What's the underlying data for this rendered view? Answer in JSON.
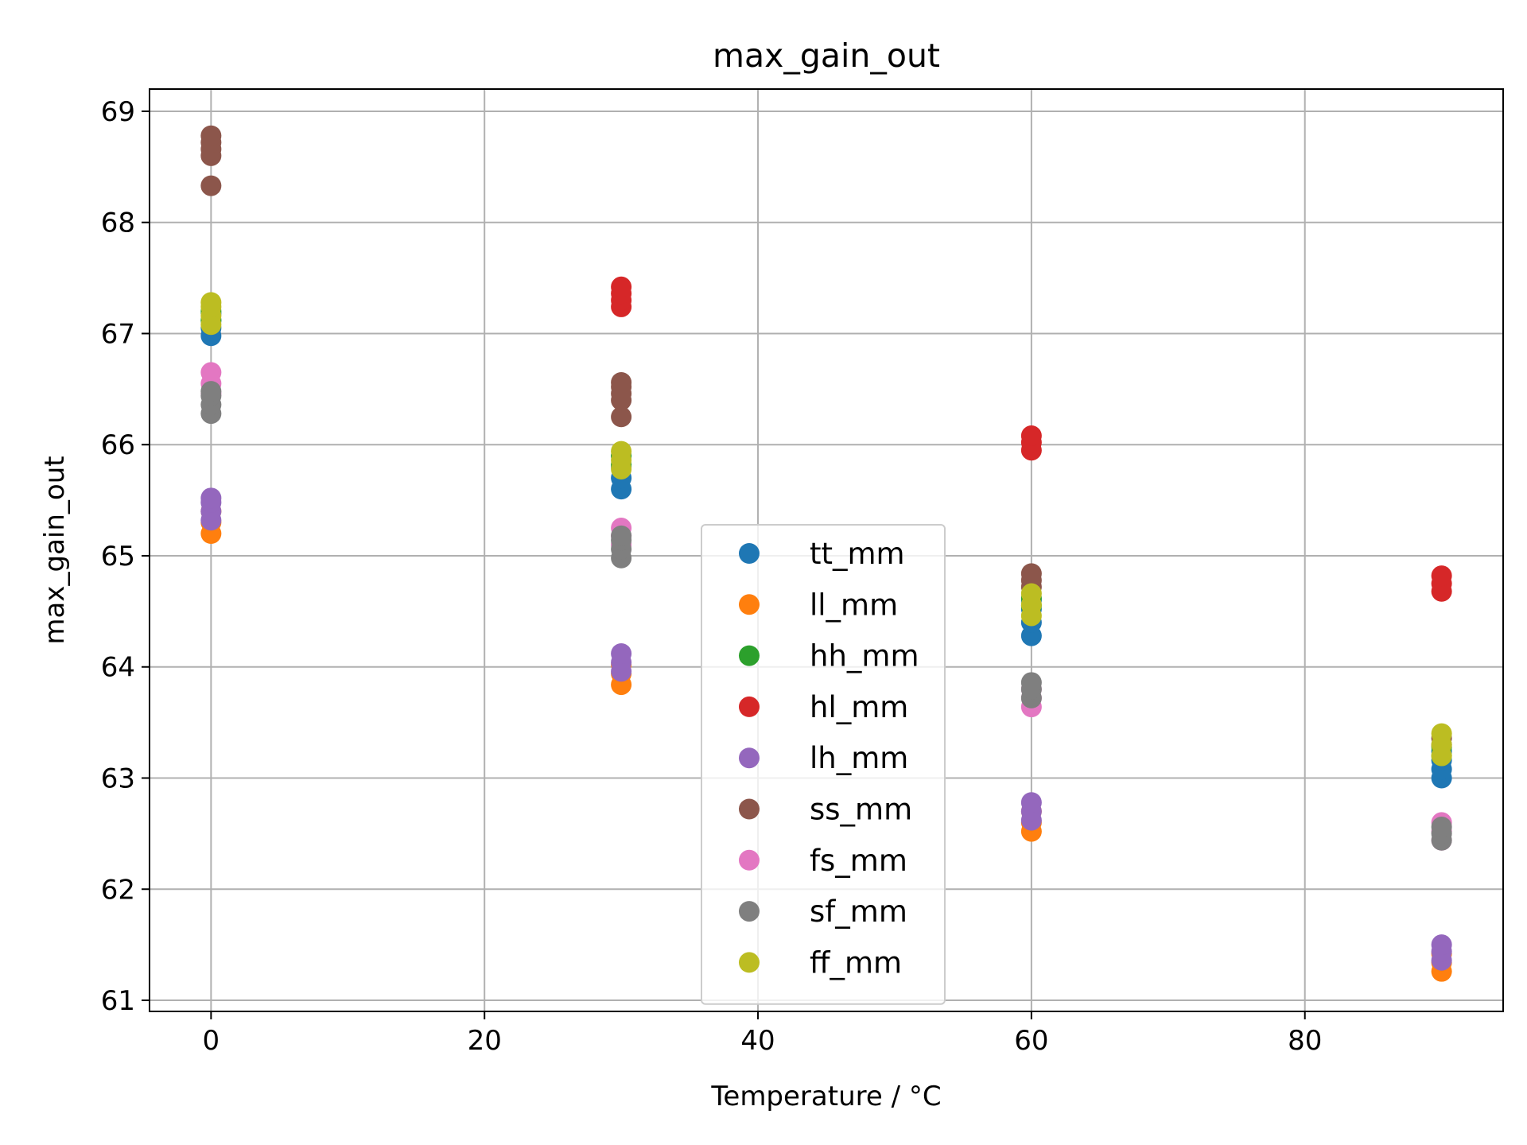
{
  "chart_data": {
    "type": "scatter",
    "title": "max_gain_out",
    "xlabel": "Temperature / °C",
    "ylabel": "max_gain_out",
    "xlim": [
      -4.5,
      94.5
    ],
    "ylim": [
      60.9,
      69.2
    ],
    "xticks": [
      0,
      20,
      40,
      60,
      80
    ],
    "yticks": [
      61,
      62,
      63,
      64,
      65,
      66,
      67,
      68,
      69
    ],
    "grid": true,
    "legend_position": "lower center",
    "series": [
      {
        "name": "tt_mm",
        "color": "#1f77b4",
        "points": [
          [
            0,
            66.98
          ],
          [
            0,
            67.05
          ],
          [
            0,
            67.12
          ],
          [
            0,
            67.18
          ],
          [
            30,
            65.6
          ],
          [
            30,
            65.7
          ],
          [
            30,
            65.8
          ],
          [
            30,
            65.9
          ],
          [
            60,
            64.28
          ],
          [
            60,
            64.4
          ],
          [
            60,
            64.52
          ],
          [
            60,
            64.6
          ],
          [
            90,
            63.0
          ],
          [
            90,
            63.08
          ],
          [
            90,
            63.16
          ],
          [
            90,
            63.24
          ]
        ]
      },
      {
        "name": "ll_mm",
        "color": "#ff7f0e",
        "points": [
          [
            0,
            65.2
          ],
          [
            0,
            65.3
          ],
          [
            0,
            65.4
          ],
          [
            30,
            63.84
          ],
          [
            30,
            63.94
          ],
          [
            30,
            64.02
          ],
          [
            60,
            62.52
          ],
          [
            60,
            62.6
          ],
          [
            60,
            62.7
          ],
          [
            90,
            61.26
          ],
          [
            90,
            61.34
          ],
          [
            90,
            61.42
          ]
        ]
      },
      {
        "name": "hh_mm",
        "color": "#2ca02c",
        "points": [
          [
            0,
            67.12
          ],
          [
            0,
            67.2
          ],
          [
            30,
            65.82
          ],
          [
            30,
            65.9
          ],
          [
            60,
            64.55
          ],
          [
            60,
            64.62
          ],
          [
            90,
            63.2
          ],
          [
            90,
            63.28
          ]
        ]
      },
      {
        "name": "hl_mm",
        "color": "#d62728",
        "points": [
          [
            30,
            67.24
          ],
          [
            30,
            67.3
          ],
          [
            30,
            67.36
          ],
          [
            30,
            67.42
          ],
          [
            60,
            65.95
          ],
          [
            60,
            66.02
          ],
          [
            60,
            66.08
          ],
          [
            90,
            64.68
          ],
          [
            90,
            64.75
          ],
          [
            90,
            64.82
          ]
        ]
      },
      {
        "name": "lh_mm",
        "color": "#9467bd",
        "points": [
          [
            0,
            65.32
          ],
          [
            0,
            65.4
          ],
          [
            0,
            65.48
          ],
          [
            0,
            65.52
          ],
          [
            30,
            63.96
          ],
          [
            30,
            64.04
          ],
          [
            30,
            64.12
          ],
          [
            60,
            62.62
          ],
          [
            60,
            62.7
          ],
          [
            60,
            62.78
          ],
          [
            90,
            61.36
          ],
          [
            90,
            61.44
          ],
          [
            90,
            61.5
          ]
        ]
      },
      {
        "name": "ss_mm",
        "color": "#8c564b",
        "points": [
          [
            0,
            68.33
          ],
          [
            0,
            68.6
          ],
          [
            0,
            68.66
          ],
          [
            0,
            68.72
          ],
          [
            0,
            68.78
          ],
          [
            30,
            66.25
          ],
          [
            30,
            66.4
          ],
          [
            30,
            66.46
          ],
          [
            30,
            66.52
          ],
          [
            30,
            66.56
          ],
          [
            60,
            64.72
          ],
          [
            60,
            64.78
          ],
          [
            60,
            64.84
          ],
          [
            90,
            63.3
          ],
          [
            90,
            63.36
          ]
        ]
      },
      {
        "name": "fs_mm",
        "color": "#e377c2",
        "points": [
          [
            0,
            66.46
          ],
          [
            0,
            66.55
          ],
          [
            0,
            66.65
          ],
          [
            30,
            65.1
          ],
          [
            30,
            65.18
          ],
          [
            30,
            65.25
          ],
          [
            60,
            63.64
          ],
          [
            60,
            63.72
          ],
          [
            60,
            63.8
          ],
          [
            90,
            62.44
          ],
          [
            90,
            62.52
          ],
          [
            90,
            62.6
          ]
        ]
      },
      {
        "name": "sf_mm",
        "color": "#7f7f7f",
        "points": [
          [
            0,
            66.28
          ],
          [
            0,
            66.36
          ],
          [
            0,
            66.44
          ],
          [
            0,
            66.48
          ],
          [
            30,
            64.98
          ],
          [
            30,
            65.06
          ],
          [
            30,
            65.14
          ],
          [
            30,
            65.18
          ],
          [
            60,
            63.72
          ],
          [
            60,
            63.8
          ],
          [
            60,
            63.86
          ],
          [
            90,
            62.44
          ],
          [
            90,
            62.5
          ],
          [
            90,
            62.56
          ]
        ]
      },
      {
        "name": "ff_mm",
        "color": "#bcbd22",
        "points": [
          [
            0,
            67.08
          ],
          [
            0,
            67.16
          ],
          [
            0,
            67.24
          ],
          [
            0,
            67.28
          ],
          [
            30,
            65.78
          ],
          [
            30,
            65.86
          ],
          [
            30,
            65.94
          ],
          [
            60,
            64.46
          ],
          [
            60,
            64.56
          ],
          [
            60,
            64.66
          ],
          [
            90,
            63.2
          ],
          [
            90,
            63.3
          ],
          [
            90,
            63.4
          ]
        ]
      }
    ]
  }
}
